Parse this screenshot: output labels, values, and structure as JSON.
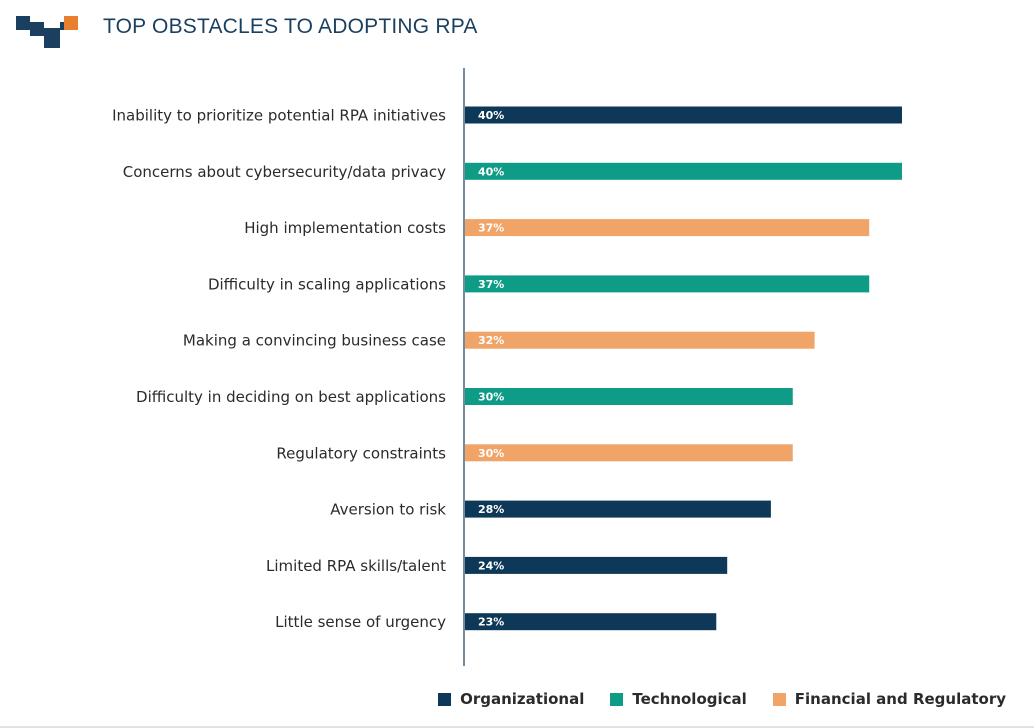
{
  "title": "TOP OBSTACLES TO ADOPTING RPA",
  "colors": {
    "organizational": "#0e3857",
    "technological": "#0e9c86",
    "financial": "#f0a468",
    "logo_dark": "#1b3f5e",
    "logo_accent": "#e87f2e"
  },
  "legend": [
    {
      "key": "organizational",
      "label": "Organizational"
    },
    {
      "key": "technological",
      "label": "Technological"
    },
    {
      "key": "financial",
      "label": "Financial and Regulatory"
    }
  ],
  "chart_data": {
    "type": "bar",
    "orientation": "horizontal",
    "title": "TOP OBSTACLES TO ADOPTING RPA",
    "xlabel": "",
    "ylabel": "",
    "xlim": [
      0,
      40
    ],
    "grid": false,
    "legend_position": "bottom-right",
    "categories": [
      "Inability to prioritize potential RPA initiatives",
      "Concerns about cybersecurity/data privacy",
      "High implementation costs",
      "Difficulty in scaling applications",
      "Making a convincing business case",
      "Difficulty in deciding on best applications",
      "Regulatory constraints",
      "Aversion to risk",
      "Limited RPA skills/talent",
      "Little sense of urgency"
    ],
    "values": [
      40,
      40,
      37,
      37,
      32,
      30,
      30,
      28,
      24,
      23
    ],
    "value_labels": [
      "40%",
      "40%",
      "37%",
      "37%",
      "32%",
      "30%",
      "30%",
      "28%",
      "24%",
      "23%"
    ],
    "groups": [
      "organizational",
      "technological",
      "financial",
      "technological",
      "financial",
      "technological",
      "financial",
      "organizational",
      "organizational",
      "organizational"
    ]
  }
}
